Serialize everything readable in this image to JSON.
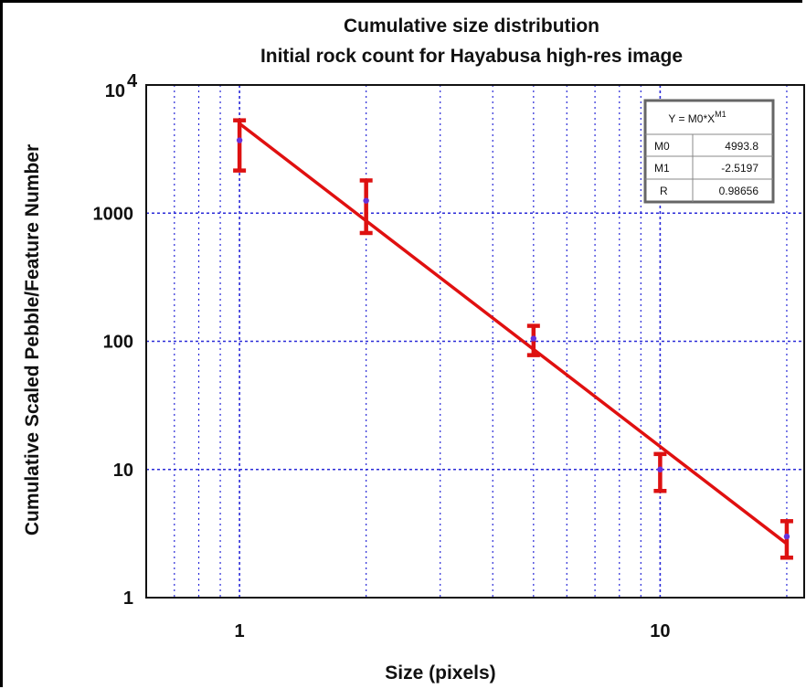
{
  "chart_data": {
    "type": "scatter",
    "title": "Cumulative size distribution",
    "subtitle": "Initial rock count for Hayabusa high-res image",
    "xlabel": "Size (pixels)",
    "ylabel": "Cumulative Scaled Pebble/Feature Number",
    "xscale": "log",
    "yscale": "log",
    "xlim": [
      0.6,
      22
    ],
    "ylim": [
      1,
      10000
    ],
    "x_ticks": [
      {
        "value": 1,
        "label": "1"
      },
      {
        "value": 10,
        "label": "10"
      }
    ],
    "y_ticks": [
      {
        "value": 1,
        "label": "1"
      },
      {
        "value": 10,
        "label": "10"
      },
      {
        "value": 100,
        "label": "100"
      },
      {
        "value": 1000,
        "label": "1000"
      }
    ],
    "y_top_tick": {
      "value": 10000,
      "base": "10",
      "exponent": "4"
    },
    "grid": true,
    "series": [
      {
        "points": [
          {
            "x": 1,
            "y": 3700,
            "err_low": 2150,
            "err_high": 5300
          },
          {
            "x": 2,
            "y": 1250,
            "err_low": 700,
            "err_high": 1800
          },
          {
            "x": 5,
            "y": 105,
            "err_low": 78,
            "err_high": 132
          },
          {
            "x": 10,
            "y": 10,
            "err_low": 6.8,
            "err_high": 13.2
          },
          {
            "x": 20,
            "y": 3,
            "err_low": 2.05,
            "err_high": 3.95
          }
        ]
      }
    ],
    "fit": {
      "equation": "Y = M0*X",
      "equation_superscript": "M1",
      "rows": [
        {
          "name": "M0",
          "value": "4993.8"
        },
        {
          "name": "M1",
          "value": "-2.5197"
        },
        {
          "name": "R",
          "value": "0.98656"
        }
      ],
      "m0": 4993.8,
      "m1": -2.5197,
      "legend_position": "top-right"
    },
    "colors": {
      "line": "#e01010",
      "error_bar": "#dd1111",
      "marker": "#6633dd",
      "grid": "#2a2ad8",
      "axes": "#111111"
    }
  }
}
